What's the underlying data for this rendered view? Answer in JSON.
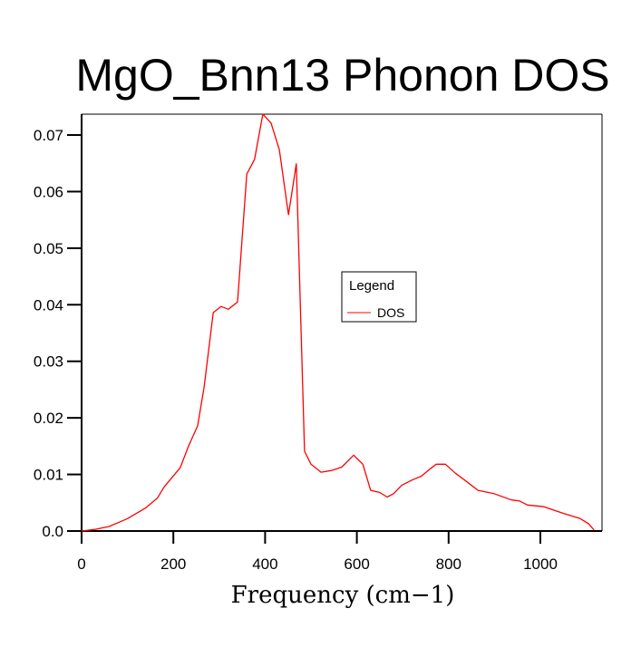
{
  "chart_data": {
    "type": "line",
    "title": "MgO_Bnn13 Phonon DOS",
    "xlabel": "Frequency (cm−1)",
    "ylabel": "",
    "xlim": [
      0,
      1135
    ],
    "ylim": [
      0,
      0.074
    ],
    "xticks": [
      0,
      200,
      400,
      600,
      800,
      1000
    ],
    "xtick_labels": [
      "0",
      "200",
      "400",
      "600",
      "800",
      "1000"
    ],
    "yticks": [
      0.0,
      0.01,
      0.02,
      0.03,
      0.04,
      0.05,
      0.06,
      0.07
    ],
    "ytick_labels": [
      "0.0",
      "0.01",
      "0.02",
      "0.03",
      "0.04",
      "0.05",
      "0.06",
      "0.07"
    ],
    "grid": false,
    "legend": {
      "title": "Legend",
      "placement": "center-right",
      "entries": [
        "DOS"
      ]
    },
    "series": [
      {
        "name": "DOS",
        "color": "#ff0000",
        "x": [
          0,
          30,
          60,
          100,
          140,
          165,
          180,
          215,
          233,
          253,
          267,
          287,
          304,
          320,
          340,
          360,
          377,
          395,
          413,
          431,
          451,
          468,
          486,
          500,
          522,
          545,
          567,
          593,
          613,
          630,
          650,
          666,
          680,
          698,
          720,
          741,
          760,
          773,
          793,
          815,
          840,
          864,
          899,
          937,
          955,
          972,
          1008,
          1047,
          1087,
          1105,
          1117
        ],
        "y": [
          0,
          0.0003,
          0.0008,
          0.0022,
          0.0041,
          0.0058,
          0.0078,
          0.0112,
          0.015,
          0.0186,
          0.0254,
          0.0386,
          0.0397,
          0.0392,
          0.0405,
          0.0631,
          0.0657,
          0.0737,
          0.0721,
          0.0674,
          0.0559,
          0.0649,
          0.0141,
          0.0118,
          0.0104,
          0.0107,
          0.0113,
          0.0134,
          0.0118,
          0.0072,
          0.0068,
          0.006,
          0.0066,
          0.0081,
          0.009,
          0.0097,
          0.011,
          0.0118,
          0.0118,
          0.0102,
          0.0087,
          0.0072,
          0.0066,
          0.0055,
          0.0053,
          0.0046,
          0.0043,
          0.0032,
          0.0022,
          0.0013,
          0.0002
        ]
      }
    ]
  }
}
